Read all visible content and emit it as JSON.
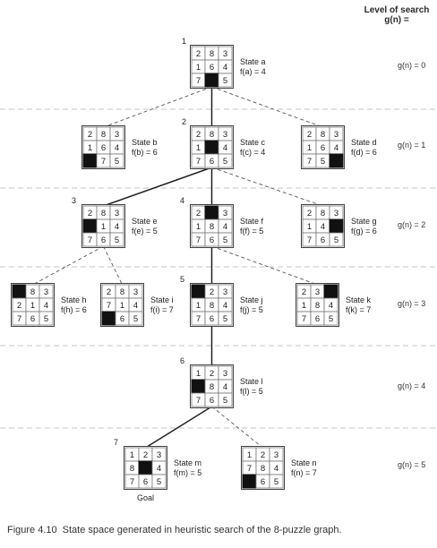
{
  "header": {
    "line1": "Level of search",
    "line2": "g(n) ="
  },
  "caption": {
    "figure": "Figure 4.10",
    "text": "State space generated in heuristic search of the 8-puzzle graph."
  },
  "levels": [
    {
      "label": "g(n) = 0"
    },
    {
      "label": "g(n) = 1"
    },
    {
      "label": "g(n) = 2"
    },
    {
      "label": "g(n) = 3"
    },
    {
      "label": "g(n) = 4"
    },
    {
      "label": "g(n) = 5"
    }
  ],
  "goal_label": "Goal",
  "states": [
    {
      "id": "a",
      "name": "State a",
      "f": "f(a) = 4",
      "order": "1",
      "tiles": [
        "2",
        "8",
        "3",
        "1",
        "6",
        "4",
        "7",
        "",
        "5"
      ]
    },
    {
      "id": "b",
      "name": "State b",
      "f": "f(b) = 6",
      "order": "",
      "tiles": [
        "2",
        "8",
        "3",
        "1",
        "6",
        "4",
        "",
        "7",
        "5"
      ]
    },
    {
      "id": "c",
      "name": "State c",
      "f": "f(c) = 4",
      "order": "2",
      "tiles": [
        "2",
        "8",
        "3",
        "1",
        "",
        "4",
        "7",
        "6",
        "5"
      ]
    },
    {
      "id": "d",
      "name": "State d",
      "f": "f(d) = 6",
      "order": "",
      "tiles": [
        "2",
        "8",
        "3",
        "1",
        "6",
        "4",
        "7",
        "5",
        ""
      ]
    },
    {
      "id": "e",
      "name": "State e",
      "f": "f(e) = 5",
      "order": "3",
      "tiles": [
        "2",
        "8",
        "3",
        "",
        "1",
        "4",
        "7",
        "6",
        "5"
      ]
    },
    {
      "id": "f",
      "name": "State f",
      "f": "f(f) = 5",
      "order": "4",
      "tiles": [
        "2",
        "",
        "3",
        "1",
        "8",
        "4",
        "7",
        "6",
        "5"
      ]
    },
    {
      "id": "g",
      "name": "State g",
      "f": "f(g) = 6",
      "order": "",
      "tiles": [
        "2",
        "8",
        "3",
        "1",
        "4",
        "",
        "7",
        "6",
        "5"
      ]
    },
    {
      "id": "h",
      "name": "State h",
      "f": "f(h) = 6",
      "order": "",
      "tiles": [
        "",
        "8",
        "3",
        "2",
        "1",
        "4",
        "7",
        "6",
        "5"
      ]
    },
    {
      "id": "i",
      "name": "State i",
      "f": "f(i) = 7",
      "order": "",
      "tiles": [
        "2",
        "8",
        "3",
        "7",
        "1",
        "4",
        "",
        "6",
        "5"
      ]
    },
    {
      "id": "j",
      "name": "State j",
      "f": "f(j) = 5",
      "order": "5",
      "tiles": [
        "",
        "2",
        "3",
        "1",
        "8",
        "4",
        "7",
        "6",
        "5"
      ]
    },
    {
      "id": "k",
      "name": "State k",
      "f": "f(k) = 7",
      "order": "",
      "tiles": [
        "2",
        "3",
        "",
        "1",
        "8",
        "4",
        "7",
        "6",
        "5"
      ]
    },
    {
      "id": "l",
      "name": "State l",
      "f": "f(l) = 5",
      "order": "6",
      "tiles": [
        "1",
        "2",
        "3",
        "",
        "8",
        "4",
        "7",
        "6",
        "5"
      ]
    },
    {
      "id": "m",
      "name": "State m",
      "f": "f(m) = 5",
      "order": "7",
      "tiles": [
        "1",
        "2",
        "3",
        "8",
        "",
        "4",
        "7",
        "6",
        "5"
      ]
    },
    {
      "id": "n",
      "name": "State n",
      "f": "f(n) = 7",
      "order": "",
      "tiles": [
        "1",
        "2",
        "3",
        "7",
        "8",
        "4",
        "",
        "6",
        "5"
      ]
    }
  ],
  "edges": [
    {
      "from": "a",
      "to": "b",
      "style": "dashed"
    },
    {
      "from": "a",
      "to": "c",
      "style": "solid"
    },
    {
      "from": "a",
      "to": "d",
      "style": "dashed"
    },
    {
      "from": "c",
      "to": "e",
      "style": "solid"
    },
    {
      "from": "c",
      "to": "f",
      "style": "solid"
    },
    {
      "from": "c",
      "to": "g",
      "style": "dashed"
    },
    {
      "from": "e",
      "to": "h",
      "style": "dashed"
    },
    {
      "from": "e",
      "to": "i",
      "style": "dashed"
    },
    {
      "from": "f",
      "to": "j",
      "style": "solid"
    },
    {
      "from": "f",
      "to": "k",
      "style": "dashed"
    },
    {
      "from": "j",
      "to": "l",
      "style": "solid"
    },
    {
      "from": "l",
      "to": "m",
      "style": "solid"
    },
    {
      "from": "l",
      "to": "n",
      "style": "dashed"
    }
  ]
}
